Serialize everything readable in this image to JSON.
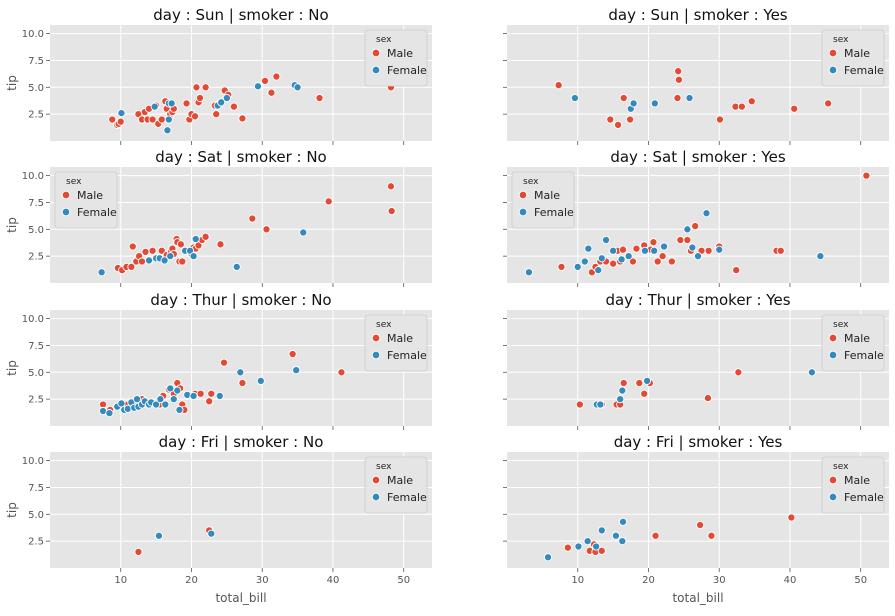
{
  "colors": {
    "Male": "#e24a33",
    "Female": "#348abd"
  },
  "chart_data": {
    "type": "scatter",
    "x_label": "total_bill",
    "y_label": "tip",
    "xlim": [
      0,
      54
    ],
    "ylim": [
      0,
      10.8
    ],
    "x_ticks": [
      10,
      20,
      30,
      40,
      50
    ],
    "y_ticks": [
      2.5,
      5.0,
      7.5,
      10.0
    ],
    "y_tick_labels": [
      "2.5",
      "5.0",
      "7.5",
      "10.0"
    ],
    "legend": {
      "title": "sex",
      "entries": [
        "Male",
        "Female"
      ]
    },
    "panels": [
      {
        "title": "day : Sun | smoker : No",
        "legend_pos": "top-right",
        "points": {
          "Male": [
            [
              8.8,
              2.0
            ],
            [
              9.5,
              1.5
            ],
            [
              9.7,
              1.6
            ],
            [
              10.0,
              1.8
            ],
            [
              12.5,
              2.5
            ],
            [
              13.0,
              2.0
            ],
            [
              13.4,
              2.7
            ],
            [
              13.8,
              2.0
            ],
            [
              14.0,
              3.0
            ],
            [
              14.5,
              2.0
            ],
            [
              15.0,
              3.3
            ],
            [
              15.3,
              1.6
            ],
            [
              15.8,
              2.0
            ],
            [
              16.3,
              3.7
            ],
            [
              16.5,
              3.0
            ],
            [
              17.0,
              2.5
            ],
            [
              17.3,
              2.7
            ],
            [
              17.5,
              3.0
            ],
            [
              19.3,
              3.5
            ],
            [
              19.7,
              2.0
            ],
            [
              20.0,
              2.5
            ],
            [
              20.5,
              2.3
            ],
            [
              20.7,
              5.0
            ],
            [
              21.0,
              3.6
            ],
            [
              21.2,
              4.0
            ],
            [
              22.0,
              5.0
            ],
            [
              23.3,
              3.3
            ],
            [
              23.5,
              2.5
            ],
            [
              24.0,
              3.5
            ],
            [
              24.7,
              4.7
            ],
            [
              25.2,
              4.3
            ],
            [
              26.0,
              3.2
            ],
            [
              27.2,
              2.1
            ],
            [
              30.4,
              5.6
            ],
            [
              31.3,
              4.5
            ],
            [
              32.0,
              6.0
            ],
            [
              38.1,
              4.0
            ],
            [
              48.2,
              5.0
            ]
          ],
          "Female": [
            [
              10.1,
              2.6
            ],
            [
              14.8,
              3.2
            ],
            [
              16.6,
              1.0
            ],
            [
              16.8,
              2.0
            ],
            [
              16.8,
              3.5
            ],
            [
              17.2,
              3.5
            ],
            [
              23.7,
              3.3
            ],
            [
              24.2,
              3.6
            ],
            [
              25.0,
              4.0
            ],
            [
              29.4,
              5.1
            ],
            [
              34.6,
              5.2
            ],
            [
              35.0,
              5.0
            ]
          ]
        }
      },
      {
        "title": "day : Sun | smoker : Yes",
        "legend_pos": "top-right",
        "points": {
          "Male": [
            [
              7.3,
              5.2
            ],
            [
              14.6,
              2.0
            ],
            [
              15.7,
              1.5
            ],
            [
              16.5,
              4.0
            ],
            [
              17.4,
              2.0
            ],
            [
              24.1,
              4.0
            ],
            [
              24.2,
              6.5
            ],
            [
              24.3,
              5.7
            ],
            [
              30.1,
              2.0
            ],
            [
              32.3,
              3.2
            ],
            [
              33.2,
              3.2
            ],
            [
              34.6,
              3.7
            ],
            [
              40.6,
              3.0
            ],
            [
              45.4,
              3.5
            ]
          ],
          "Female": [
            [
              9.6,
              4.0
            ],
            [
              17.5,
              3.0
            ],
            [
              17.9,
              3.5
            ],
            [
              20.9,
              3.5
            ],
            [
              25.8,
              4.0
            ]
          ]
        }
      },
      {
        "title": "day : Sat | smoker : No",
        "legend_pos": "top-left",
        "points": {
          "Male": [
            [
              9.6,
              1.4
            ],
            [
              10.2,
              1.2
            ],
            [
              10.8,
              1.5
            ],
            [
              11.5,
              1.5
            ],
            [
              11.7,
              3.4
            ],
            [
              12.2,
              2.0
            ],
            [
              12.6,
              2.5
            ],
            [
              13.0,
              2.0
            ],
            [
              13.5,
              2.9
            ],
            [
              14.0,
              2.0
            ],
            [
              14.5,
              3.0
            ],
            [
              15.4,
              2.3
            ],
            [
              15.8,
              3.0
            ],
            [
              16.3,
              2.3
            ],
            [
              16.5,
              2.6
            ],
            [
              17.1,
              2.9
            ],
            [
              17.3,
              3.2
            ],
            [
              17.5,
              2.7
            ],
            [
              17.9,
              4.1
            ],
            [
              18.0,
              3.8
            ],
            [
              18.3,
              2.0
            ],
            [
              18.5,
              3.6
            ],
            [
              18.7,
              2.0
            ],
            [
              19.5,
              3.0
            ],
            [
              20.0,
              2.7
            ],
            [
              20.3,
              3.3
            ],
            [
              20.6,
              3.2
            ],
            [
              21.0,
              3.5
            ],
            [
              21.5,
              4.0
            ],
            [
              22.0,
              4.3
            ],
            [
              24.1,
              3.6
            ],
            [
              28.6,
              6.0
            ],
            [
              30.6,
              5.0
            ],
            [
              39.4,
              7.6
            ],
            [
              48.2,
              9.0
            ],
            [
              48.3,
              6.7
            ]
          ],
          "Female": [
            [
              7.3,
              1.0
            ],
            [
              14.0,
              2.1
            ],
            [
              15.0,
              2.3
            ],
            [
              15.5,
              2.3
            ],
            [
              16.2,
              2.1
            ],
            [
              17.0,
              2.5
            ],
            [
              19.1,
              3.0
            ],
            [
              19.8,
              3.0
            ],
            [
              20.3,
              2.5
            ],
            [
              20.6,
              4.1
            ],
            [
              26.4,
              1.5
            ],
            [
              35.8,
              4.7
            ]
          ]
        }
      },
      {
        "title": "day : Sat | smoker : Yes",
        "legend_pos": "top-left",
        "points": {
          "Male": [
            [
              7.7,
              1.5
            ],
            [
              12.0,
              1.0
            ],
            [
              12.5,
              1.5
            ],
            [
              13.2,
              2.0
            ],
            [
              14.0,
              2.0
            ],
            [
              15.0,
              1.8
            ],
            [
              15.6,
              3.0
            ],
            [
              16.0,
              2.0
            ],
            [
              16.4,
              3.1
            ],
            [
              17.8,
              2.0
            ],
            [
              18.3,
              3.2
            ],
            [
              19.4,
              3.5
            ],
            [
              20.3,
              3.1
            ],
            [
              20.7,
              3.8
            ],
            [
              21.3,
              2.0
            ],
            [
              22.0,
              2.5
            ],
            [
              23.3,
              2.0
            ],
            [
              24.5,
              4.0
            ],
            [
              25.5,
              4.0
            ],
            [
              26.0,
              3.0
            ],
            [
              26.6,
              5.3
            ],
            [
              27.5,
              3.0
            ],
            [
              28.5,
              3.0
            ],
            [
              30.0,
              3.4
            ],
            [
              32.4,
              1.2
            ],
            [
              38.1,
              3.0
            ],
            [
              38.7,
              3.0
            ],
            [
              50.8,
              10.0
            ]
          ],
          "Female": [
            [
              3.1,
              1.0
            ],
            [
              10.0,
              1.5
            ],
            [
              11.0,
              2.0
            ],
            [
              11.5,
              3.2
            ],
            [
              12.9,
              1.2
            ],
            [
              13.4,
              2.3
            ],
            [
              14.0,
              4.0
            ],
            [
              15.0,
              3.0
            ],
            [
              16.2,
              2.2
            ],
            [
              17.2,
              2.5
            ],
            [
              19.5,
              3.0
            ],
            [
              20.8,
              3.0
            ],
            [
              22.2,
              3.4
            ],
            [
              25.5,
              5.0
            ],
            [
              26.2,
              3.3
            ],
            [
              27.0,
              2.5
            ],
            [
              28.2,
              6.5
            ],
            [
              30.0,
              3.1
            ],
            [
              44.3,
              2.5
            ]
          ]
        }
      },
      {
        "title": "day : Thur | smoker : No",
        "legend_pos": "top-right",
        "points": {
          "Male": [
            [
              7.5,
              2.0
            ],
            [
              8.5,
              1.5
            ],
            [
              10.0,
              1.8
            ],
            [
              11.0,
              2.0
            ],
            [
              12.5,
              2.0
            ],
            [
              13.0,
              2.5
            ],
            [
              14.5,
              2.2
            ],
            [
              15.5,
              2.0
            ],
            [
              16.0,
              2.8
            ],
            [
              16.8,
              3.4
            ],
            [
              17.5,
              3.0
            ],
            [
              18.0,
              4.0
            ],
            [
              18.4,
              3.5
            ],
            [
              18.7,
              2.0
            ],
            [
              19.0,
              1.5
            ],
            [
              20.5,
              3.0
            ],
            [
              21.3,
              3.0
            ],
            [
              22.5,
              2.3
            ],
            [
              22.8,
              3.0
            ],
            [
              24.6,
              5.9
            ],
            [
              27.2,
              4.0
            ],
            [
              34.3,
              6.7
            ],
            [
              41.2,
              5.0
            ]
          ],
          "Female": [
            [
              7.5,
              1.4
            ],
            [
              8.4,
              1.2
            ],
            [
              9.5,
              1.8
            ],
            [
              10.1,
              2.1
            ],
            [
              10.5,
              1.5
            ],
            [
              11.0,
              1.6
            ],
            [
              11.5,
              2.2
            ],
            [
              11.9,
              1.7
            ],
            [
              12.3,
              2.5
            ],
            [
              12.5,
              1.8
            ],
            [
              13.0,
              2.0
            ],
            [
              13.4,
              2.3
            ],
            [
              14.0,
              2.0
            ],
            [
              14.3,
              2.2
            ],
            [
              15.0,
              2.0
            ],
            [
              15.6,
              2.5
            ],
            [
              16.3,
              2.0
            ],
            [
              17.0,
              3.5
            ],
            [
              17.5,
              2.5
            ],
            [
              18.0,
              3.3
            ],
            [
              18.3,
              1.5
            ],
            [
              19.4,
              2.9
            ],
            [
              20.3,
              2.8
            ],
            [
              24.0,
              2.8
            ],
            [
              26.9,
              5.0
            ],
            [
              29.8,
              4.2
            ],
            [
              34.8,
              5.2
            ]
          ]
        }
      },
      {
        "title": "day : Thur | smoker : Yes",
        "legend_pos": "top-right",
        "points": {
          "Male": [
            [
              10.3,
              2.0
            ],
            [
              13.0,
              2.0
            ],
            [
              13.4,
              2.0
            ],
            [
              15.5,
              2.0
            ],
            [
              16.0,
              2.0
            ],
            [
              16.5,
              4.0
            ],
            [
              18.7,
              4.0
            ],
            [
              19.4,
              3.0
            ],
            [
              20.2,
              4.0
            ],
            [
              28.4,
              2.6
            ],
            [
              32.7,
              5.0
            ]
          ],
          "Female": [
            [
              12.7,
              2.0
            ],
            [
              13.2,
              2.0
            ],
            [
              16.0,
              2.5
            ],
            [
              16.3,
              3.3
            ],
            [
              19.8,
              4.2
            ],
            [
              43.1,
              5.0
            ]
          ]
        }
      },
      {
        "title": "day : Fri | smoker : No",
        "legend_pos": "top-right",
        "points": {
          "Male": [
            [
              12.5,
              1.5
            ],
            [
              22.5,
              3.5
            ]
          ],
          "Female": [
            [
              15.4,
              3.0
            ],
            [
              22.8,
              3.2
            ]
          ]
        }
      },
      {
        "title": "day : Fri | smoker : Yes",
        "legend_pos": "top-right",
        "points": {
          "Male": [
            [
              8.6,
              1.9
            ],
            [
              11.7,
              1.6
            ],
            [
              12.3,
              2.2
            ],
            [
              12.5,
              1.5
            ],
            [
              13.4,
              1.6
            ],
            [
              21.0,
              3.0
            ],
            [
              27.3,
              4.0
            ],
            [
              28.9,
              3.0
            ],
            [
              40.2,
              4.7
            ]
          ],
          "Female": [
            [
              5.8,
              1.0
            ],
            [
              10.1,
              2.0
            ],
            [
              11.4,
              2.5
            ],
            [
              12.6,
              2.0
            ],
            [
              13.4,
              3.5
            ],
            [
              15.4,
              3.0
            ],
            [
              16.3,
              2.5
            ],
            [
              16.4,
              4.3
            ]
          ]
        }
      }
    ]
  }
}
